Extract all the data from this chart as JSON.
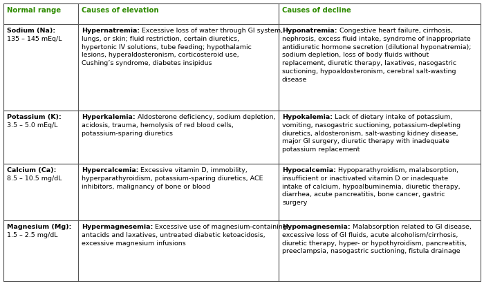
{
  "col1_header": "Normal range",
  "col2_header": "Causes of elevation",
  "col3_header": "Causes of decline",
  "header_color": "#2e8b00",
  "border_color": "#555555",
  "font_size": 6.8,
  "rows": [
    {
      "col1_bold": "Sodium (Na):",
      "col1_normal": "135 – 145 mEq/L",
      "col2_bold": "Hypernatremia:",
      "col2_normal": " Excessive loss of water through GI system, lungs, or skin; fluid restriction, certain diuretics, hypertonic IV solutions, tube feeding; hypothalamic lesions, hyperaldosteronism, corticosteroid use, Cushing’s syndrome, diabetes insipidus",
      "col3_bold": "Hyponatremia:",
      "col3_normal": " Congestive heart failure, cirrhosis, nephrosis, excess fluid intake, syndrome of inappropriate antidiuretic hormone secretion (dilutional hyponatremia); sodium depletion, loss of body fluids without replacement, diuretic therapy, laxatives, nasogastric suctioning, hypoaldosteronism, cerebral salt-wasting disease"
    },
    {
      "col1_bold": "Potassium (K):",
      "col1_normal": "3.5 – 5.0 mEq/L",
      "col2_bold": "Hyperkalemia:",
      "col2_normal": " Aldosterone deficiency, sodium depletion, acidosis, trauma, hemolysis of red blood cells, potassium-sparing diuretics",
      "col3_bold": "Hypokalemia:",
      "col3_normal": " Lack of dietary intake of potassium, vomiting, nasogastric suctioning, potassium-depleting diuretics, aldosteronism, salt-wasting kidney disease, major GI surgery, diuretic therapy with inadequate potassium replacement"
    },
    {
      "col1_bold": "Calcium (Ca):",
      "col1_normal": "8.5 – 10.5 mg/dL",
      "col2_bold": "Hypercalcemia:",
      "col2_normal": " Excessive vitamin D, immobility, hyperparathyroidism, potassium-sparing diuretics, ACE inhibitors, malignancy of bone or blood",
      "col3_bold": "Hypocalcemia:",
      "col3_normal": " Hypoparathyroidism, malabsorption, insufficient or inactivated vitamin D or inadequate intake of calcium, hypoalbuminemia, diuretic therapy, diarrhea, acute pancreatitis, bone cancer, gastric surgery"
    },
    {
      "col1_bold": "Magnesium (Mg):",
      "col1_normal": "1.5 – 2.5 mg/dL",
      "col2_bold": "Hypermagnesemia:",
      "col2_normal": " Excessive use of magnesium-containing antacids and laxatives, untreated diabetic ketoacidosis, excessive magnesium infusions",
      "col3_bold": "Hypomagnesemia:",
      "col3_normal": " Malabsorption related to GI disease, excessive loss of GI fluids, acute alcoholism/cirrhosis, diuretic therapy, hyper- or hypothyroidism, pancreatitis, preeclampsia, nasogastric suctioning, fistula drainage"
    }
  ]
}
